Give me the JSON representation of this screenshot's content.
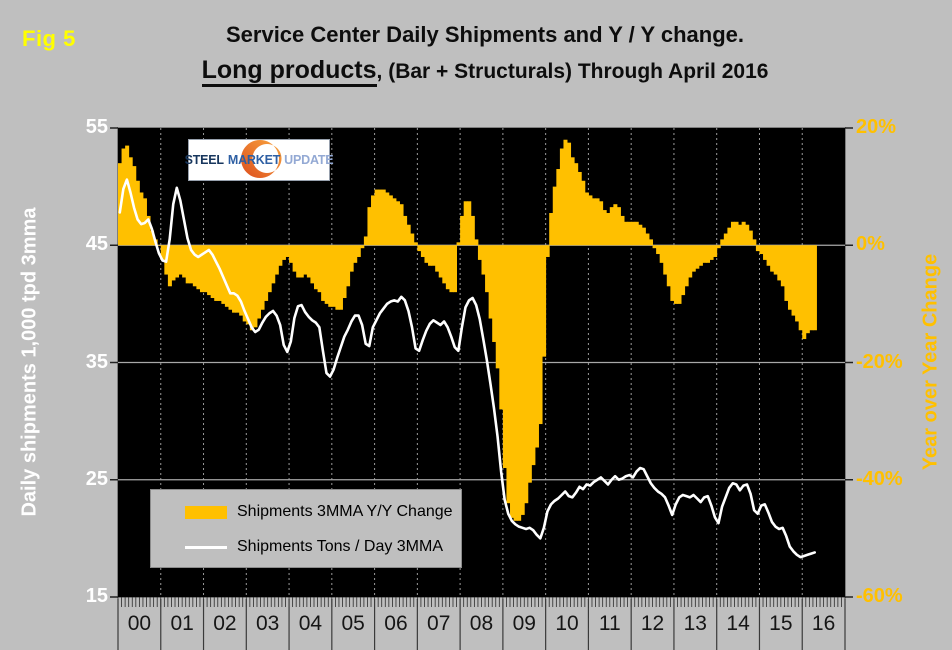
{
  "figure_label": "Fig 5",
  "title": {
    "line1": "Service Center Daily Shipments and Y / Y change.",
    "line2_emphasis": "Long products",
    "line2_rest": ", (Bar + Structurals) Through April 2016"
  },
  "logo": {
    "word1": "STEEL",
    "word2": "MARKET",
    "word3": "UPDATE"
  },
  "legend": {
    "items": [
      {
        "label": "Shipments 3MMA Y/Y Change",
        "swatch": "gold-bar"
      },
      {
        "label": "Shipments Tons / Day 3MMA",
        "swatch": "white-line"
      }
    ]
  },
  "colors": {
    "page_bg": "#bfbfbf",
    "plot_bg": "#000000",
    "bar": "#ffc000",
    "line": "#ffffff",
    "fig_label": "#ffff00",
    "left_axis_text": "#ffffff",
    "right_axis_text": "#ffc000",
    "gridline": "#a8a8a8",
    "year_gridline": "#9b9b9b",
    "tick": "#222222"
  },
  "chart_data": {
    "type": "bar+line",
    "title": "Service Center Daily Shipments and Y / Y change. Long products, (Bar + Structurals) Through April 2016",
    "x_years": [
      "00",
      "01",
      "02",
      "03",
      "04",
      "05",
      "06",
      "07",
      "08",
      "09",
      "10",
      "11",
      "12",
      "13",
      "14",
      "15",
      "16"
    ],
    "months_start": "2000-01",
    "months_end": "2016-04",
    "left_axis": {
      "title": "Daily shipments 1,000 tpd 3mma",
      "ticks": [
        55,
        45,
        35,
        25,
        15
      ],
      "range": [
        15,
        55
      ]
    },
    "right_axis": {
      "title": "Year over Year Change",
      "tick_labels": [
        "20%",
        "0%",
        "-20%",
        "-40%",
        "-60%"
      ],
      "ticks": [
        20,
        0,
        -20,
        -40,
        -60
      ],
      "range": [
        -60,
        20
      ]
    },
    "gridlines": {
      "horizontal_at_left_values": [
        45,
        35,
        25
      ],
      "vertical": "dashed at each year boundary"
    },
    "legend_position": "inside lower-left",
    "series": [
      {
        "name": "Shipments 3MMA Y/Y Change",
        "type": "bar",
        "axis": "right",
        "unit": "%",
        "values": [
          14,
          16.5,
          17,
          15,
          13.5,
          11,
          9,
          8,
          5,
          2.5,
          1,
          0,
          -2.5,
          -5,
          -7,
          -6,
          -5.5,
          -5,
          -5.5,
          -6.5,
          -6.5,
          -7,
          -7.5,
          -8,
          -8,
          -8.5,
          -9,
          -9.5,
          -9.5,
          -10,
          -10.5,
          -11,
          -11.5,
          -11.5,
          -12,
          -13,
          -13.5,
          -14.5,
          -14,
          -12.5,
          -11,
          -9.5,
          -8,
          -6.5,
          -5,
          -3.5,
          -2.5,
          -2,
          -3,
          -4.5,
          -5.5,
          -5.5,
          -5,
          -5.5,
          -6.5,
          -7.5,
          -8,
          -9.5,
          -10,
          -10.5,
          -10.5,
          -11,
          -11,
          -9,
          -7,
          -4.5,
          -3,
          -2,
          -0.5,
          1.5,
          6.5,
          8.5,
          9.5,
          9.5,
          9.5,
          9,
          8.5,
          8,
          7.5,
          7,
          5,
          3.5,
          2,
          0.5,
          -1,
          -2,
          -3,
          -3.5,
          -3.5,
          -4.5,
          -5.5,
          -6.5,
          -7.5,
          -8,
          -8,
          0.5,
          5,
          7.5,
          7.5,
          5,
          1,
          -2.5,
          -5,
          -8,
          -12.5,
          -16.5,
          -21,
          -28,
          -38,
          -44,
          -46.5,
          -47,
          -47,
          -46,
          -44,
          -40.5,
          -37.5,
          -34.5,
          -30.5,
          -19,
          -2,
          5.5,
          10,
          13,
          16.5,
          18,
          17.5,
          15,
          14,
          12.5,
          11,
          9,
          8.5,
          8,
          8,
          7.5,
          6,
          5.5,
          6.5,
          7,
          6.5,
          5,
          4,
          4,
          4,
          4,
          3.5,
          3,
          2,
          1,
          -0.5,
          -1.5,
          -3,
          -5,
          -7,
          -9.5,
          -10,
          -10,
          -8.5,
          -7,
          -5.5,
          -4.5,
          -4,
          -3.5,
          -3,
          -3,
          -2.5,
          -2,
          -0.5,
          1,
          2,
          3,
          4,
          4,
          3.5,
          4,
          3.5,
          2.5,
          1,
          -1,
          -1.5,
          -2.5,
          -3.5,
          -4.5,
          -5,
          -6,
          -7,
          -9.5,
          -11,
          -12,
          -13,
          -14.5,
          -16,
          -15,
          -14.5,
          -14.5
        ]
      },
      {
        "name": "Shipments Tons / Day 3MMA",
        "type": "line",
        "axis": "left",
        "unit": "1,000 tpd",
        "values": [
          47.8,
          49.8,
          50.6,
          49.5,
          48.2,
          47.2,
          46.8,
          46.9,
          47.2,
          46.4,
          45.3,
          44.3,
          43.7,
          43.6,
          45.5,
          48.5,
          49.9,
          48.8,
          47.2,
          45.6,
          44.6,
          44.2,
          44,
          44.2,
          44.4,
          44.6,
          44.2,
          43.6,
          43,
          42.3,
          41.6,
          40.9,
          40.9,
          40.7,
          40.2,
          39.4,
          38.7,
          38,
          37.6,
          37.8,
          38.4,
          38.9,
          39.2,
          39.4,
          39,
          38.2,
          36.5,
          35.9,
          36.8,
          38.8,
          39.8,
          39.9,
          39.3,
          38.9,
          38.6,
          38.4,
          38,
          36,
          34.1,
          33.8,
          34.4,
          35.4,
          36.3,
          37.2,
          37.8,
          38.5,
          39,
          39,
          38.2,
          36.6,
          36.4,
          38,
          38.6,
          39.2,
          39.6,
          40,
          40.2,
          40.3,
          40.2,
          40.6,
          40.3,
          39.4,
          38,
          36.2,
          36,
          36.9,
          37.7,
          38.3,
          38.6,
          38.4,
          38.2,
          38.5,
          38,
          37.2,
          36.3,
          36,
          38,
          39.7,
          40.3,
          40.5,
          39.9,
          38.7,
          37,
          35.2,
          33.2,
          31.1,
          28.7,
          25.7,
          23.3,
          22.1,
          21.5,
          21.2,
          21,
          20.9,
          20.8,
          20.9,
          20.7,
          20.3,
          20,
          20.9,
          22.3,
          22.9,
          23.2,
          23.4,
          23.7,
          24,
          23.6,
          23.5,
          23.9,
          24.4,
          24.2,
          24.6,
          24.5,
          24.8,
          25,
          25.2,
          24.9,
          24.6,
          25,
          25.3,
          25,
          25.1,
          25.3,
          25.4,
          25.2,
          25.7,
          26,
          25.9,
          25.3,
          24.7,
          24.3,
          24,
          23.8,
          23.5,
          22.8,
          22,
          22.9,
          23.5,
          23.7,
          23.6,
          23.5,
          23.7,
          23.4,
          23.1,
          23.5,
          23.6,
          22.8,
          21.8,
          21.3,
          22.7,
          23.5,
          24.3,
          24.7,
          24.6,
          24.1,
          24.5,
          24.6,
          23.8,
          22.4,
          22.1,
          22.8,
          22.9,
          22.2,
          21.4,
          21,
          20.8,
          20.9,
          20.2,
          19.3,
          18.9,
          18.6,
          18.4,
          18.5,
          18.6,
          18.7,
          18.8
        ]
      }
    ]
  }
}
